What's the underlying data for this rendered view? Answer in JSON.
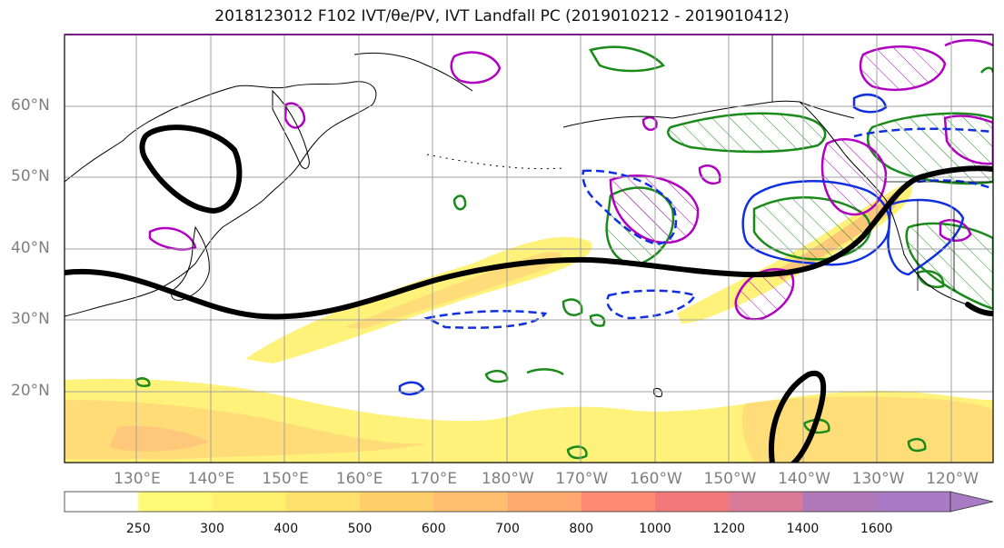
{
  "title": "2018123012 F102 IVT/θe/PV, IVT Landfall PC (2019010212 - 2019010412)",
  "map": {
    "lat_labels": [
      {
        "text": "60°N",
        "lat": 60
      },
      {
        "text": "50°N",
        "lat": 50
      },
      {
        "text": "40°N",
        "lat": 40
      },
      {
        "text": "30°N",
        "lat": 30
      },
      {
        "text": "20°N",
        "lat": 20
      }
    ],
    "lon_labels": [
      {
        "text": "130°E",
        "lon": 130
      },
      {
        "text": "140°E",
        "lon": 140
      },
      {
        "text": "150°E",
        "lon": 150
      },
      {
        "text": "160°E",
        "lon": 160
      },
      {
        "text": "170°E",
        "lon": 170
      },
      {
        "text": "180°W",
        "lon": 180
      },
      {
        "text": "170°W",
        "lon": 190
      },
      {
        "text": "160°W",
        "lon": 200
      },
      {
        "text": "150°W",
        "lon": 210
      },
      {
        "text": "140°W",
        "lon": 220
      },
      {
        "text": "130°W",
        "lon": 230
      },
      {
        "text": "120°W",
        "lon": 240
      }
    ],
    "extent": {
      "lon_min": 120.2,
      "lon_max": 245.5,
      "lat_min": 10,
      "lat_max": 70
    },
    "colors": {
      "coast": "#000000",
      "grid": "#a0a0a0",
      "theta_e_pc": "#000000",
      "pv": "#b000c0",
      "green_contour": "#1a8a1a",
      "blue_contour": "#1030e0"
    }
  },
  "colorbar": {
    "levels": [
      "250",
      "300",
      "400",
      "500",
      "600",
      "700",
      "800",
      "1000",
      "1200",
      "1400",
      "1600"
    ],
    "colors": [
      "#ffffff",
      "#fffb78",
      "#fff06e",
      "#ffe06c",
      "#ffcf6c",
      "#ffbe70",
      "#ffa870",
      "#ff8c72",
      "#f2787a",
      "#d87a98",
      "#b07ab8",
      "#a97bc4"
    ]
  }
}
